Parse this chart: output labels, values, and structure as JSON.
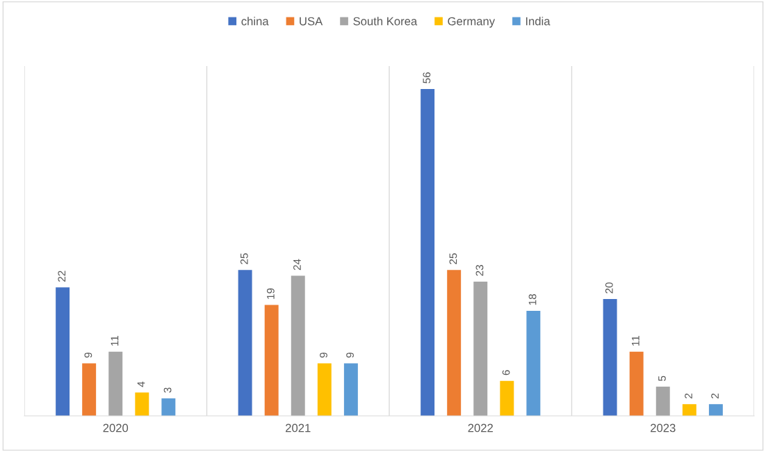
{
  "chart_data": {
    "type": "bar",
    "categories": [
      "2020",
      "2021",
      "2022",
      "2023"
    ],
    "series": [
      {
        "name": "china",
        "color": "#4472c4",
        "values": [
          22,
          25,
          56,
          20
        ]
      },
      {
        "name": "USA",
        "color": "#ed7d31",
        "values": [
          9,
          19,
          25,
          11
        ]
      },
      {
        "name": "South Korea",
        "color": "#a5a5a5",
        "values": [
          11,
          24,
          23,
          5
        ]
      },
      {
        "name": "Germany",
        "color": "#ffc000",
        "values": [
          4,
          9,
          6,
          2
        ]
      },
      {
        "name": "India",
        "color": "#5b9bd5",
        "values": [
          3,
          9,
          18,
          2
        ]
      }
    ],
    "data_labels": true,
    "grid": "x",
    "legend": "top",
    "tick_labels": "x"
  }
}
